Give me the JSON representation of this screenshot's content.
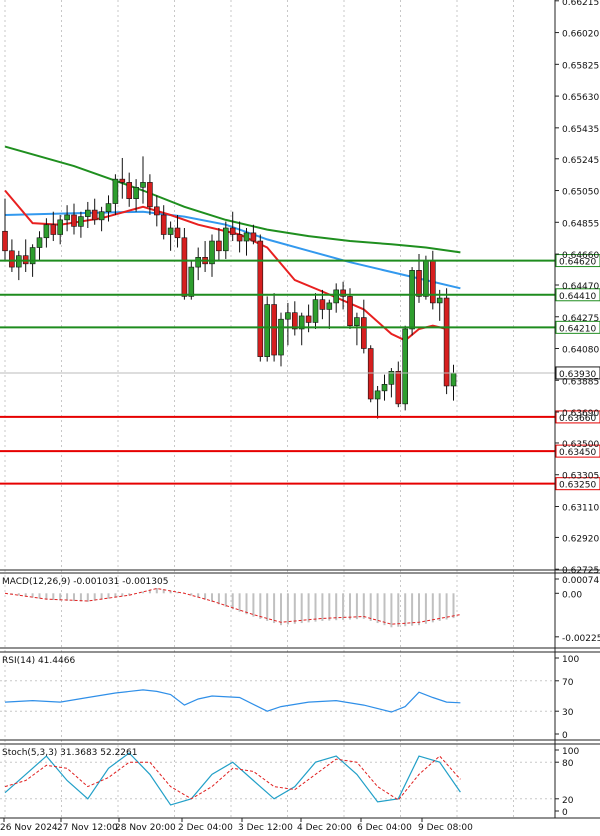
{
  "chart_data": {
    "type": "candlestick",
    "title": "",
    "price_axis_labels": [
      "0.66215",
      "0.66020",
      "0.65825",
      "0.65630",
      "0.65435",
      "0.65245",
      "0.65050",
      "0.64855",
      "0.64660",
      "0.64470",
      "0.64275",
      "0.64080",
      "0.63885",
      "0.63690",
      "0.63500",
      "0.63305",
      "0.63110",
      "0.62920",
      "0.62725"
    ],
    "ylim": [
      0.6272,
      0.6622
    ],
    "x_labels": [
      "26 Nov 2024",
      "27 Nov 12:00",
      "28 Nov 20:00",
      "2 Dec 04:00",
      "3 Dec 12:00",
      "4 Dec 20:00",
      "6 Dec 04:00",
      "9 Dec 08:00"
    ],
    "candles": [
      [
        0.648,
        0.65,
        0.6462,
        0.6468
      ],
      [
        0.6468,
        0.6475,
        0.6455,
        0.6458
      ],
      [
        0.6458,
        0.6468,
        0.645,
        0.6465
      ],
      [
        0.6465,
        0.6475,
        0.6455,
        0.646
      ],
      [
        0.646,
        0.6472,
        0.6452,
        0.647
      ],
      [
        0.647,
        0.648,
        0.6462,
        0.6476
      ],
      [
        0.6476,
        0.6488,
        0.647,
        0.6484
      ],
      [
        0.6484,
        0.6492,
        0.6474,
        0.6478
      ],
      [
        0.6478,
        0.649,
        0.6472,
        0.6487
      ],
      [
        0.6487,
        0.6496,
        0.648,
        0.649
      ],
      [
        0.649,
        0.6497,
        0.6478,
        0.6483
      ],
      [
        0.6483,
        0.6492,
        0.6476,
        0.6489
      ],
      [
        0.6489,
        0.6498,
        0.6482,
        0.6493
      ],
      [
        0.6493,
        0.65,
        0.6484,
        0.6487
      ],
      [
        0.6487,
        0.6495,
        0.648,
        0.6492
      ],
      [
        0.6492,
        0.6502,
        0.6486,
        0.6497
      ],
      [
        0.6497,
        0.6515,
        0.649,
        0.6512
      ],
      [
        0.6512,
        0.6525,
        0.65,
        0.651
      ],
      [
        0.651,
        0.6516,
        0.6495,
        0.65
      ],
      [
        0.65,
        0.6512,
        0.6492,
        0.6507
      ],
      [
        0.6507,
        0.6526,
        0.6497,
        0.651
      ],
      [
        0.651,
        0.6515,
        0.649,
        0.6495
      ],
      [
        0.6495,
        0.6502,
        0.6483,
        0.649
      ],
      [
        0.649,
        0.6496,
        0.6475,
        0.6478
      ],
      [
        0.6478,
        0.6486,
        0.6468,
        0.6482
      ],
      [
        0.6482,
        0.649,
        0.647,
        0.6476
      ],
      [
        0.6476,
        0.6482,
        0.6438,
        0.644
      ],
      [
        0.644,
        0.6462,
        0.6438,
        0.6458
      ],
      [
        0.6458,
        0.647,
        0.645,
        0.6464
      ],
      [
        0.6464,
        0.6474,
        0.6455,
        0.646
      ],
      [
        0.646,
        0.6478,
        0.6452,
        0.6474
      ],
      [
        0.6474,
        0.6482,
        0.6462,
        0.6468
      ],
      [
        0.6468,
        0.6486,
        0.6463,
        0.6482
      ],
      [
        0.6482,
        0.6492,
        0.6474,
        0.6478
      ],
      [
        0.6478,
        0.6486,
        0.6467,
        0.6474
      ],
      [
        0.6474,
        0.6482,
        0.6465,
        0.6479
      ],
      [
        0.6479,
        0.6484,
        0.6472,
        0.6474
      ],
      [
        0.6474,
        0.6478,
        0.64,
        0.6403
      ],
      [
        0.6403,
        0.644,
        0.64,
        0.6435
      ],
      [
        0.6435,
        0.6442,
        0.64,
        0.6404
      ],
      [
        0.6404,
        0.643,
        0.6397,
        0.6426
      ],
      [
        0.6426,
        0.6436,
        0.641,
        0.643
      ],
      [
        0.643,
        0.6437,
        0.6416,
        0.642
      ],
      [
        0.642,
        0.643,
        0.641,
        0.6428
      ],
      [
        0.6428,
        0.6435,
        0.6418,
        0.6424
      ],
      [
        0.6424,
        0.6442,
        0.642,
        0.6438
      ],
      [
        0.6438,
        0.6444,
        0.6426,
        0.6432
      ],
      [
        0.6432,
        0.6438,
        0.642,
        0.6436
      ],
      [
        0.6436,
        0.6448,
        0.643,
        0.6444
      ],
      [
        0.6444,
        0.6449,
        0.6432,
        0.644
      ],
      [
        0.644,
        0.6445,
        0.642,
        0.6422
      ],
      [
        0.6422,
        0.643,
        0.641,
        0.6427
      ],
      [
        0.6427,
        0.6438,
        0.6405,
        0.6408
      ],
      [
        0.6408,
        0.641,
        0.6375,
        0.6377
      ],
      [
        0.6377,
        0.6385,
        0.6365,
        0.6382
      ],
      [
        0.6382,
        0.6392,
        0.6376,
        0.6386
      ],
      [
        0.6386,
        0.6396,
        0.6378,
        0.6394
      ],
      [
        0.6394,
        0.64,
        0.6372,
        0.6374
      ],
      [
        0.6374,
        0.6422,
        0.637,
        0.642
      ],
      [
        0.642,
        0.6458,
        0.6416,
        0.6456
      ],
      [
        0.6456,
        0.6466,
        0.6436,
        0.644
      ],
      [
        0.644,
        0.6465,
        0.6438,
        0.6462
      ],
      [
        0.6462,
        0.6468,
        0.6432,
        0.6436
      ],
      [
        0.6436,
        0.6444,
        0.6425,
        0.6439
      ],
      [
        0.6439,
        0.6445,
        0.638,
        0.6385
      ],
      [
        0.6385,
        0.6398,
        0.6376,
        0.6393
      ]
    ],
    "ma_green": [
      [
        0,
        0.6532
      ],
      [
        10,
        0.652
      ],
      [
        20,
        0.6505
      ],
      [
        26,
        0.6495
      ],
      [
        32,
        0.6487
      ],
      [
        38,
        0.6481
      ],
      [
        44,
        0.6477
      ],
      [
        50,
        0.6474
      ],
      [
        56,
        0.6472
      ],
      [
        61,
        0.647
      ],
      [
        66,
        0.6467
      ]
    ],
    "ma_blue": [
      [
        0,
        0.649
      ],
      [
        10,
        0.6491
      ],
      [
        20,
        0.6492
      ],
      [
        26,
        0.6489
      ],
      [
        32,
        0.6484
      ],
      [
        38,
        0.6475
      ],
      [
        44,
        0.6468
      ],
      [
        50,
        0.6461
      ],
      [
        56,
        0.6455
      ],
      [
        61,
        0.645
      ],
      [
        66,
        0.6445
      ]
    ],
    "ma_red": [
      [
        0,
        0.6505
      ],
      [
        4,
        0.6485
      ],
      [
        8,
        0.6484
      ],
      [
        14,
        0.6488
      ],
      [
        20,
        0.6495
      ],
      [
        24,
        0.649
      ],
      [
        28,
        0.6484
      ],
      [
        34,
        0.6478
      ],
      [
        38,
        0.647
      ],
      [
        42,
        0.645
      ],
      [
        46,
        0.6443
      ],
      [
        52,
        0.6432
      ],
      [
        56,
        0.6417
      ],
      [
        58,
        0.6413
      ],
      [
        60,
        0.642
      ],
      [
        62,
        0.6422
      ],
      [
        64,
        0.642
      ]
    ],
    "green_levels": [
      "0.64620",
      "0.64410",
      "0.64210"
    ],
    "red_levels": [
      "0.63660",
      "0.63450",
      "0.63250"
    ],
    "level_colors": {
      "green": "#1e8c1e",
      "red": "#e60000",
      "current": "#1a1a1a",
      "up": "#2e9e2e",
      "down": "#d61f1f"
    },
    "current_price": "0.63930",
    "macd": {
      "label": "MACD(12,26,9) -0.001031 -0.001305",
      "scale_labels": [
        "0.00074",
        "0.00",
        "-0.002252"
      ],
      "range": [
        -0.00252,
        0.00074
      ],
      "signal": [
        [
          0,
          0.0
        ],
        [
          6,
          -0.0003
        ],
        [
          12,
          -0.0004
        ],
        [
          18,
          -0.0001
        ],
        [
          22,
          0.00025
        ],
        [
          26,
          0.0
        ],
        [
          30,
          -0.0004
        ],
        [
          36,
          -0.0011
        ],
        [
          40,
          -0.0015
        ],
        [
          46,
          -0.0013
        ],
        [
          52,
          -0.0012
        ],
        [
          56,
          -0.0016
        ],
        [
          60,
          -0.0015
        ],
        [
          66,
          -0.0011
        ]
      ]
    },
    "rsi": {
      "label": "RSI(14) 41.4466",
      "scale_labels": [
        "100",
        "70",
        "30",
        "0"
      ],
      "range": [
        0,
        100
      ],
      "values": [
        [
          0,
          42
        ],
        [
          4,
          44
        ],
        [
          8,
          42
        ],
        [
          12,
          48
        ],
        [
          16,
          54
        ],
        [
          20,
          58
        ],
        [
          22,
          56
        ],
        [
          24,
          52
        ],
        [
          26,
          38
        ],
        [
          28,
          46
        ],
        [
          30,
          50
        ],
        [
          34,
          48
        ],
        [
          38,
          30
        ],
        [
          40,
          36
        ],
        [
          44,
          42
        ],
        [
          48,
          44
        ],
        [
          52,
          38
        ],
        [
          56,
          29
        ],
        [
          58,
          36
        ],
        [
          60,
          55
        ],
        [
          62,
          48
        ],
        [
          64,
          42
        ],
        [
          66,
          41
        ]
      ]
    },
    "stoch": {
      "label": "Stoch(5,3,3) 31.3683 52.2261",
      "scale_labels": [
        "100",
        "80",
        "20",
        "0"
      ],
      "range": [
        0,
        100
      ],
      "k": [
        [
          0,
          30
        ],
        [
          3,
          60
        ],
        [
          6,
          90
        ],
        [
          9,
          50
        ],
        [
          12,
          20
        ],
        [
          15,
          70
        ],
        [
          18,
          95
        ],
        [
          21,
          60
        ],
        [
          24,
          10
        ],
        [
          27,
          20
        ],
        [
          30,
          60
        ],
        [
          33,
          80
        ],
        [
          36,
          50
        ],
        [
          39,
          20
        ],
        [
          42,
          40
        ],
        [
          45,
          80
        ],
        [
          48,
          90
        ],
        [
          51,
          60
        ],
        [
          54,
          15
        ],
        [
          57,
          20
        ],
        [
          60,
          90
        ],
        [
          63,
          80
        ],
        [
          66,
          31
        ]
      ],
      "d": [
        [
          0,
          40
        ],
        [
          3,
          50
        ],
        [
          6,
          75
        ],
        [
          9,
          70
        ],
        [
          12,
          40
        ],
        [
          15,
          55
        ],
        [
          18,
          80
        ],
        [
          21,
          80
        ],
        [
          24,
          40
        ],
        [
          27,
          20
        ],
        [
          30,
          40
        ],
        [
          33,
          70
        ],
        [
          36,
          65
        ],
        [
          39,
          40
        ],
        [
          42,
          35
        ],
        [
          45,
          60
        ],
        [
          48,
          85
        ],
        [
          51,
          80
        ],
        [
          54,
          40
        ],
        [
          57,
          18
        ],
        [
          60,
          60
        ],
        [
          63,
          90
        ],
        [
          66,
          52
        ]
      ]
    }
  }
}
